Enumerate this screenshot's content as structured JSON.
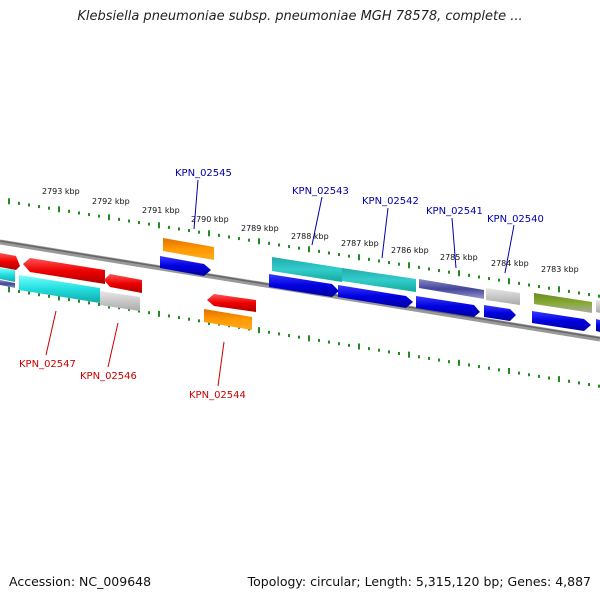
{
  "title": "Klebsiella pneumoniae subsp. pneumoniae MGH 78578, complete ...",
  "footer": {
    "accession": "Accession: NC_009648",
    "topology": "Topology: circular; Length: 5,315,120 bp; Genes: 4,887"
  },
  "colors": {
    "forward_label": "#0000aa",
    "reverse_label": "#cc0000",
    "backbone": "#888888",
    "ticks": "#228b22"
  },
  "ruler": {
    "labels": [
      "2793 kbp",
      "2792 kbp",
      "2791 kbp",
      "2790 kbp",
      "2789 kbp",
      "2788 kbp",
      "2787 kbp",
      "2786 kbp",
      "2785 kbp",
      "2784 kbp",
      "2783 kbp"
    ]
  },
  "genes": [
    {
      "label": "KPN_02545",
      "strand": "forward"
    },
    {
      "label": "KPN_02543",
      "strand": "forward"
    },
    {
      "label": "KPN_02542",
      "strand": "forward"
    },
    {
      "label": "KPN_02541",
      "strand": "forward"
    },
    {
      "label": "KPN_02540",
      "strand": "forward"
    },
    {
      "label": "KPN_02547",
      "strand": "reverse"
    },
    {
      "label": "KPN_02546",
      "strand": "reverse"
    },
    {
      "label": "KPN_02544",
      "strand": "reverse"
    }
  ]
}
